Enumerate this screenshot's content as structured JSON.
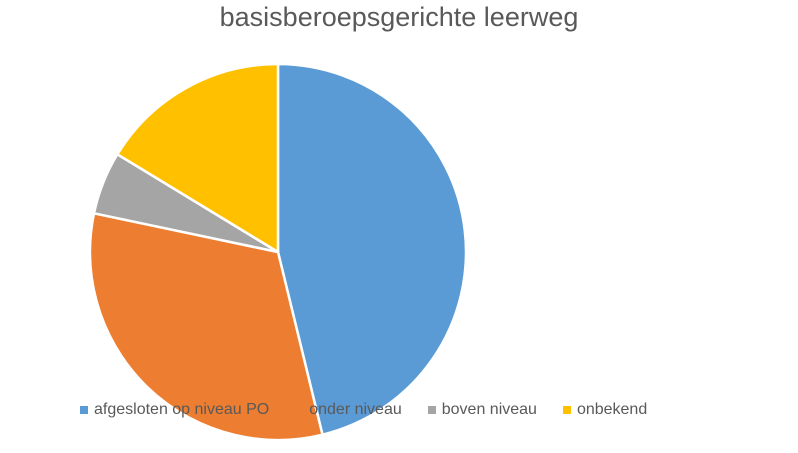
{
  "chart_data": {
    "type": "pie",
    "title": "basisberoepsgerichte leerweg",
    "categories": [
      "afgesloten op niveau PO",
      "onder niveau",
      "boven niveau",
      "onbekend"
    ],
    "values": [
      46.2,
      32.1,
      5.4,
      16.3
    ],
    "colors": [
      "#5B9BD5",
      "#ED7D31",
      "#A5A5A5",
      "#FFC000"
    ],
    "legend": "bottom"
  }
}
